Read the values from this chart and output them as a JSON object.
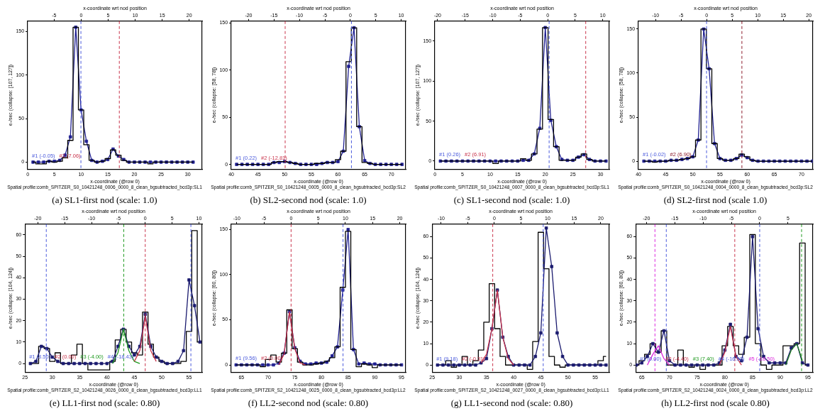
{
  "chart_data": [
    {
      "type": "line",
      "title": "(a) SL1-first nod (scale: 1.0)",
      "subtitle": "Spatial profile:comb_SPITZER_S0_10421248_0006_0000_8_clean_bgsubtracted_bcd3p:SL1",
      "xlabel": "x-coordinate (@row 0)",
      "x2label": "x-coordinate wrt nod position",
      "ylabel": "e-/sec (collapse: [107, 127])",
      "x": [
        1,
        2,
        3,
        4,
        5,
        6,
        7,
        8,
        9,
        10,
        11,
        12,
        13,
        14,
        15,
        16,
        17,
        18,
        19,
        20,
        21,
        22,
        23,
        24,
        25,
        26,
        27,
        28,
        29,
        30,
        31
      ],
      "series": [
        {
          "type": "line",
          "color": "#202090",
          "marker": "square",
          "values": [
            0,
            0,
            0,
            1,
            1,
            2,
            8,
            29,
            155,
            60,
            24,
            2,
            0,
            1,
            3,
            15,
            7,
            3,
            0,
            0,
            0,
            0,
            0,
            0,
            0,
            0,
            0,
            0,
            0,
            0,
            0
          ]
        },
        {
          "type": "step",
          "color": "#000000",
          "values": [
            0,
            -2,
            -2,
            1,
            0,
            1,
            5,
            25,
            155,
            60,
            20,
            2,
            0,
            1,
            4,
            14,
            8,
            2,
            0,
            0,
            0,
            0,
            -2,
            0,
            0,
            0,
            0,
            0,
            0,
            0,
            0
          ]
        }
      ],
      "xlim": [
        0,
        32.7
      ],
      "xticks": [
        0,
        5,
        10,
        15,
        20,
        25,
        30
      ],
      "ylim": [
        -8,
        162
      ],
      "yticks": [
        0,
        50,
        100,
        150
      ],
      "x2lim": [
        -9.9,
        22.4
      ],
      "x2ticks": [
        -5,
        0,
        5,
        10,
        15,
        20
      ],
      "ref_lines": [
        {
          "axis": "x2",
          "value": -0.05,
          "label": "#1 (-0.05)",
          "color": "#4a5adc",
          "line_style": "dashed"
        },
        {
          "axis": "x2",
          "value": 7.06,
          "label": "#2 (7.06)",
          "color": "#c8324a",
          "line_style": "dashed"
        }
      ],
      "grid": false,
      "legend": false
    },
    {
      "type": "line",
      "title": "(b) SL2-second nod (scale: 1.0)",
      "subtitle": "Spatial profile:comb_SPITZER_S0_10421248_0005_0000_8_clean_bgsubtracted_bcd3p:SL2",
      "xlabel": "x-coordinate (@row 0)",
      "x2label": "x-coordinate wrt nod position",
      "ylabel": "e-/sec (collapse: [58, 78])",
      "x": [
        41,
        42,
        43,
        44,
        45,
        46,
        47,
        48,
        49,
        50,
        51,
        52,
        53,
        54,
        55,
        56,
        57,
        58,
        59,
        60,
        61,
        62,
        63,
        64,
        65,
        66,
        67,
        68,
        69,
        70,
        71,
        72
      ],
      "series": [
        {
          "type": "line",
          "color": "#202090",
          "marker": "square",
          "values": [
            0,
            0,
            0,
            0,
            0,
            0,
            0,
            2,
            2,
            3,
            2,
            1,
            0,
            0,
            0,
            0,
            1,
            2,
            2,
            3,
            14,
            104,
            145,
            40,
            4,
            1,
            0,
            0,
            0,
            0,
            0,
            0
          ]
        },
        {
          "type": "step",
          "color": "#000000",
          "values": [
            0,
            0,
            0,
            0,
            0,
            0,
            0,
            2,
            3,
            3,
            2,
            1,
            0,
            0,
            0,
            1,
            1,
            2,
            2,
            5,
            14,
            109,
            145,
            40,
            2,
            1,
            0,
            0,
            0,
            0,
            0,
            0
          ]
        }
      ],
      "xlim": [
        40,
        72.7
      ],
      "xticks": [
        40,
        45,
        50,
        55,
        60,
        65,
        70
      ],
      "ylim": [
        -5,
        152
      ],
      "yticks": [
        0,
        50,
        100,
        150
      ],
      "x2lim": [
        -23.4,
        10.9
      ],
      "x2ticks": [
        -20,
        -15,
        -10,
        -5,
        0,
        5,
        10
      ],
      "ref_lines": [
        {
          "axis": "x2",
          "value": 0.22,
          "label": "#1 (0.22)",
          "color": "#4a5adc",
          "line_style": "dashed"
        },
        {
          "axis": "x2",
          "value": -12.81,
          "label": "#2 (-12.81)",
          "color": "#c8324a",
          "line_style": "dashed"
        }
      ],
      "grid": false,
      "legend": false
    },
    {
      "type": "line",
      "title": "(c) SL1-second nod (scale: 1.0)",
      "subtitle": "Spatial profile:comb_SPITZER_S0_10421248_0007_0000_8_clean_bgsubtracted_bcd3p:SL1",
      "xlabel": "x-coordinate (@row 0)",
      "x2label": "x-coordinate wrt nod position",
      "ylabel": "e-/sec (collapse: [107, 127])",
      "x": [
        1,
        2,
        3,
        4,
        5,
        6,
        7,
        8,
        9,
        10,
        11,
        12,
        13,
        14,
        15,
        16,
        17,
        18,
        19,
        20,
        21,
        22,
        23,
        24,
        25,
        26,
        27,
        28,
        29,
        30,
        31
      ],
      "series": [
        {
          "type": "line",
          "color": "#202090",
          "marker": "square",
          "values": [
            0,
            0,
            0,
            0,
            0,
            0,
            0,
            0,
            0,
            0,
            0,
            0,
            0,
            0,
            0,
            1,
            1,
            9,
            41,
            167,
            51,
            18,
            2,
            1,
            1,
            5,
            8,
            2,
            0,
            0,
            0
          ]
        },
        {
          "type": "step",
          "color": "#000000",
          "values": [
            0,
            0,
            0,
            0,
            0,
            0,
            0,
            0,
            0,
            0,
            -3,
            0,
            0,
            0,
            0,
            3,
            1,
            9,
            40,
            167,
            52,
            18,
            1,
            1,
            1,
            5,
            9,
            2,
            0,
            0,
            0
          ]
        }
      ],
      "xlim": [
        0,
        31.6
      ],
      "xticks": [
        0,
        5,
        10,
        15,
        20,
        25,
        30
      ],
      "ylim": [
        -10,
        175
      ],
      "yticks": [
        0,
        50,
        100,
        150
      ],
      "x2lim": [
        -20.5,
        11.2
      ],
      "x2ticks": [
        -20,
        -15,
        -10,
        -5,
        0,
        5,
        10
      ],
      "ref_lines": [
        {
          "axis": "x2",
          "value": 0.26,
          "label": "#1 (0.26)",
          "color": "#4a5adc",
          "line_style": "dashed"
        },
        {
          "axis": "x2",
          "value": 6.91,
          "label": "#2 (6.91)",
          "color": "#c8324a",
          "line_style": "dashed"
        }
      ],
      "grid": false,
      "legend": false
    },
    {
      "type": "line",
      "title": "(d) SL2-first nod (scale 1.0)",
      "subtitle": "Spatial profile:comb_SPITZER_S0_10421248_0004_0000_8_clean_bgsubtracted_bcd3p:SL2",
      "xlabel": "x-coordinate (@row 0)",
      "x2label": "x-coordinate wrt nod position",
      "ylabel": "e-/sec (collapse: [58, 78])",
      "x": [
        41,
        42,
        43,
        44,
        45,
        46,
        47,
        48,
        49,
        50,
        51,
        52,
        53,
        54,
        55,
        56,
        57,
        58,
        59,
        60,
        61,
        62,
        63,
        64,
        65,
        66,
        67,
        68,
        69,
        70,
        71,
        72
      ],
      "series": [
        {
          "type": "line",
          "color": "#202090",
          "marker": "square",
          "values": [
            0,
            0,
            0,
            0,
            0,
            1,
            1,
            2,
            3,
            5,
            24,
            150,
            105,
            20,
            3,
            1,
            1,
            3,
            7,
            4,
            1,
            0,
            0,
            0,
            0,
            0,
            0,
            0,
            0,
            0,
            0,
            0
          ]
        },
        {
          "type": "step",
          "color": "#000000",
          "values": [
            0,
            0,
            -1,
            0,
            0,
            1,
            1,
            2,
            3,
            5,
            24,
            150,
            105,
            20,
            3,
            1,
            1,
            3,
            8,
            5,
            1,
            0,
            0,
            0,
            0,
            0,
            0,
            0,
            0,
            0,
            0,
            0
          ]
        }
      ],
      "xlim": [
        40,
        72.1
      ],
      "xticks": [
        40,
        45,
        50,
        55,
        60,
        65,
        70
      ],
      "ylim": [
        -9,
        159
      ],
      "yticks": [
        0,
        50,
        100,
        150
      ],
      "x2lim": [
        -13.35,
        20.8
      ],
      "x2ticks": [
        -10,
        -5,
        0,
        5,
        10,
        15,
        20
      ],
      "ref_lines": [
        {
          "axis": "x2",
          "value": -0.02,
          "label": "#1 (-0.02)",
          "color": "#4a5adc",
          "line_style": "dashed"
        },
        {
          "axis": "x2",
          "value": 6.9,
          "label": "#2 (6.90)",
          "color": "#8c1a2a",
          "line_style": "dashed"
        }
      ],
      "grid": false,
      "legend": false
    },
    {
      "type": "line",
      "title": "(e) LL1-first nod (scale: 0.80)",
      "subtitle": "Spatial profile:comb_SPITZER_S2_10421248_0026_0000_8_clean_bgsubtracted_bcd3p:LL1",
      "xlabel": "x-coordinate (@row 0)",
      "x2label": "x-coordinate wrt nod position",
      "ylabel": "e-/sec (collapse: [104, 124])",
      "x": [
        26,
        27,
        28,
        29,
        30,
        31,
        32,
        33,
        34,
        35,
        36,
        37,
        38,
        39,
        40,
        41,
        42,
        43,
        44,
        45,
        46,
        47,
        48,
        49,
        50,
        51,
        52,
        53,
        54,
        55,
        56,
        57
      ],
      "series": [
        {
          "type": "step",
          "color": "#000000",
          "values": [
            0,
            0,
            8,
            7,
            1,
            5,
            0,
            0,
            4,
            9,
            0,
            -3,
            -3,
            -3,
            -3,
            1,
            11,
            16,
            10,
            5,
            4,
            24,
            9,
            3,
            1,
            0,
            0,
            0,
            1,
            15,
            62,
            10
          ]
        },
        {
          "type": "line",
          "color": "#1a1a6e",
          "marker": "square",
          "values": [
            0,
            1,
            8,
            7,
            3,
            1,
            0,
            0,
            0,
            0,
            0,
            0,
            0,
            0,
            0,
            1,
            8,
            16,
            8,
            4,
            8,
            23,
            8,
            3,
            1,
            0,
            0,
            1,
            6,
            39,
            27,
            10
          ]
        },
        {
          "type": "line",
          "color": "#1f9a1f",
          "x": [
            41,
            42,
            43,
            44,
            45,
            46
          ],
          "values": [
            0,
            5,
            16,
            6,
            1,
            0
          ]
        },
        {
          "type": "line",
          "color": "#c8324a",
          "x": [
            45,
            46,
            47,
            48,
            49
          ],
          "values": [
            1,
            6,
            22,
            6,
            1
          ]
        }
      ],
      "xlim": [
        25,
        57.4
      ],
      "xticks": [
        25,
        30,
        35,
        40,
        45,
        50,
        55
      ],
      "ylim": [
        -4,
        65
      ],
      "yticks": [
        0,
        10,
        20,
        30,
        40,
        50,
        60
      ],
      "x2lim": [
        -22.4,
        10.6
      ],
      "x2ticks": [
        -20,
        -15,
        -10,
        -5,
        0,
        5,
        10
      ],
      "ref_lines": [
        {
          "axis": "x2",
          "value": 8.5,
          "label": "#1 (8.50)",
          "color": "#4a5adc",
          "line_style": "dashed"
        },
        {
          "axis": "x2",
          "value": 0,
          "label": "#2 (0.00)",
          "color": "#c8324a",
          "line_style": "dashed"
        },
        {
          "axis": "x2",
          "value": -4,
          "label": "#3 (-4.00)",
          "color": "#1f9a1f",
          "line_style": "dashed"
        },
        {
          "axis": "x2",
          "value": -18.43,
          "label": "#4 (-18.43)",
          "color": "#4a5adc",
          "line_style": "dashed"
        }
      ],
      "grid": false,
      "legend": false
    },
    {
      "type": "line",
      "title": "(f) LL2-second nod (scale: 0.80)",
      "subtitle": "Spatial profile:comb_SPITZER_S2_10421248_0025_0000_8_clean_bgsubtracted_bcd3p:LL2",
      "xlabel": "x-coordinate (@row 0)",
      "x2label": "x-coordinate wrt nod position",
      "ylabel": "e-/sec (collapse: [60, 80])",
      "x": [
        64,
        65,
        66,
        67,
        68,
        69,
        70,
        71,
        72,
        73,
        74,
        75,
        76,
        77,
        78,
        79,
        80,
        81,
        82,
        83,
        84,
        85,
        86,
        87,
        88,
        89,
        90,
        91,
        92,
        93,
        94,
        95
      ],
      "series": [
        {
          "type": "line",
          "color": "#202090",
          "marker": "square",
          "values": [
            0,
            0,
            0,
            0,
            0,
            0,
            0,
            0,
            2,
            13,
            59,
            19,
            4,
            1,
            1,
            2,
            2,
            3,
            10,
            20,
            83,
            150,
            17,
            1,
            2,
            1,
            1,
            0,
            0,
            0,
            0,
            0
          ]
        },
        {
          "type": "step",
          "color": "#000000",
          "values": [
            0,
            0,
            0,
            0,
            0,
            -2,
            6,
            11,
            3,
            13,
            61,
            18,
            3,
            0,
            0,
            1,
            2,
            4,
            8,
            20,
            86,
            148,
            17,
            -2,
            1,
            0,
            -3,
            0,
            0,
            0,
            0,
            0
          ]
        },
        {
          "type": "line",
          "color": "#c8324a",
          "x": [
            72,
            73,
            74,
            75,
            76,
            77
          ],
          "values": [
            0,
            12,
            59,
            18,
            2,
            0
          ]
        }
      ],
      "xlim": [
        63.1,
        95.8
      ],
      "xticks": [
        65,
        70,
        75,
        80,
        85,
        90,
        95
      ],
      "ylim": [
        -8,
        156
      ],
      "yticks": [
        0,
        50,
        100,
        150
      ],
      "x2lim": [
        -11,
        21.1
      ],
      "x2ticks": [
        -10,
        -5,
        0,
        5,
        10,
        15,
        20
      ],
      "ref_lines": [
        {
          "axis": "x2",
          "value": 9.56,
          "label": "#1 (9.56)",
          "color": "#4a5adc",
          "line_style": "dashed"
        },
        {
          "axis": "x2",
          "value": 0,
          "label": "#2 (0.00)",
          "color": "#c8324a",
          "line_style": "dashed"
        }
      ],
      "grid": false,
      "legend": false
    },
    {
      "type": "line",
      "title": "(g) LL1-second nod (scale: 0.80)",
      "subtitle": "Spatial profile:comb_SPITZER_S2_10421248_0027_0000_8_clean_bgsubtracted_bcd3p:LL1",
      "xlabel": "x-coordinate (@row 0)",
      "x2label": "x-coordinate wrt nod position",
      "ylabel": "e-/sec (collapse: [104, 124])",
      "x": [
        26,
        27,
        28,
        29,
        30,
        31,
        32,
        33,
        34,
        35,
        36,
        37,
        38,
        39,
        40,
        41,
        42,
        43,
        44,
        45,
        46,
        47,
        48,
        49,
        50,
        51,
        52,
        53,
        54,
        55,
        56,
        57
      ],
      "series": [
        {
          "type": "step",
          "color": "#000000",
          "values": [
            0,
            0,
            2,
            -1,
            0,
            4,
            0,
            2,
            7,
            20,
            38,
            17,
            4,
            0,
            0,
            0,
            0,
            -2,
            11,
            62,
            45,
            4,
            0,
            -1,
            0,
            0,
            0,
            0,
            0,
            0,
            2,
            4
          ]
        },
        {
          "type": "line",
          "color": "#1a1a6e",
          "marker": "square",
          "values": [
            0,
            0,
            0,
            0,
            0,
            0,
            0,
            0,
            1,
            3,
            17,
            35,
            13,
            4,
            0,
            0,
            0,
            0,
            4,
            15,
            64,
            46,
            15,
            4,
            0,
            0,
            0,
            0,
            0,
            0,
            0,
            0
          ]
        },
        {
          "type": "line",
          "color": "#c8324a",
          "x": [
            34,
            35,
            36,
            37,
            38,
            39,
            40
          ],
          "values": [
            1,
            5,
            17,
            35,
            13,
            3,
            0
          ]
        }
      ],
      "xlim": [
        25,
        57.6
      ],
      "xticks": [
        25,
        30,
        35,
        40,
        45,
        50,
        55
      ],
      "ylim": [
        -3.3,
        65.8
      ],
      "yticks": [
        0,
        10,
        20,
        30,
        40,
        50,
        60
      ],
      "x2lim": [
        -11.7,
        21.6
      ],
      "x2ticks": [
        -10,
        -5,
        0,
        5,
        10,
        15,
        20
      ],
      "ref_lines": [
        {
          "axis": "x2",
          "value": 9.18,
          "label": "#1 (9.18)",
          "color": "#4a5adc",
          "line_style": "dashed"
        },
        {
          "axis": "x2",
          "value": -0.31,
          "label": "#2 (-0.31)",
          "color": "#c8324a",
          "line_style": "dashed"
        }
      ],
      "grid": false,
      "legend": false
    },
    {
      "type": "line",
      "title": "(h) LL2-first nod (scale 0.80)",
      "subtitle": "Spatial profile:comb_SPITZER_S2_10421248_0024_0000_8_clean_bgsubtracted_bcd3p:LL2",
      "xlabel": "x-coordinate (@row 0)",
      "x2label": "x-coordinate wrt nod position",
      "ylabel": "e-/sec (collapse: [60, 80])",
      "x": [
        64,
        65,
        66,
        67,
        68,
        69,
        70,
        71,
        72,
        73,
        74,
        75,
        76,
        77,
        78,
        79,
        80,
        81,
        82,
        83,
        84,
        85,
        86,
        87,
        88,
        89,
        90,
        91,
        92,
        93,
        94,
        95
      ],
      "series": [
        {
          "type": "step",
          "color": "#000000",
          "values": [
            0,
            2,
            5,
            10,
            6,
            16,
            0,
            0,
            7,
            0,
            -1,
            0,
            -2,
            0,
            0,
            0,
            9,
            18,
            9,
            5,
            13,
            61,
            10,
            0,
            -2,
            0,
            0,
            9,
            9,
            10,
            57,
            0
          ]
        },
        {
          "type": "line",
          "color": "#1a1a6e",
          "marker": "square",
          "values": [
            0,
            1,
            4,
            10,
            6,
            16,
            2,
            0,
            0,
            0,
            0,
            0,
            0,
            0,
            0,
            1,
            7,
            19,
            4,
            2,
            13,
            60,
            17,
            4,
            1,
            1,
            1,
            1,
            8,
            10,
            1,
            0
          ]
        },
        {
          "type": "line",
          "color": "#dc28dc",
          "x": [
            66,
            67,
            68,
            69,
            70
          ],
          "values": [
            0,
            5,
            9,
            3,
            0
          ]
        },
        {
          "type": "line",
          "color": "#c8324a",
          "x": [
            79,
            80,
            81,
            82,
            83
          ],
          "values": [
            0,
            6,
            18,
            4,
            0
          ]
        },
        {
          "type": "line",
          "color": "#1f7a1f",
          "x": [
            91,
            92,
            93,
            94
          ],
          "values": [
            0,
            7,
            10,
            2
          ]
        }
      ],
      "xlim": [
        63.9,
        95.9
      ],
      "xticks": [
        65,
        70,
        75,
        80,
        85,
        90,
        95
      ],
      "ylim": [
        -3.3,
        65.8
      ],
      "yticks": [
        0,
        10,
        20,
        30,
        40,
        50,
        60
      ],
      "x2lim": [
        -21.9,
        9.4
      ],
      "x2ticks": [
        -20,
        -15,
        -10,
        -5,
        0,
        5
      ],
      "ref_lines": [
        {
          "axis": "x2",
          "value": 0,
          "label": "#1 (0.00)",
          "color": "#4a5adc",
          "line_style": "dashed"
        },
        {
          "axis": "x2",
          "value": -4.4,
          "label": "#2 (-4.40)",
          "color": "#c8324a",
          "line_style": "dashed"
        },
        {
          "axis": "x2",
          "value": 7.4,
          "label": "#3 (7.40)",
          "color": "#1f9a1f",
          "line_style": "dashed"
        },
        {
          "axis": "x2",
          "value": -16.5,
          "label": "#4 (-16.50)",
          "color": "#4a5adc",
          "line_style": "dashed"
        },
        {
          "axis": "x2",
          "value": -18.5,
          "label": "#5 (-18.50)",
          "color": "#dc28dc",
          "line_style": "dashed"
        }
      ],
      "grid": false,
      "legend": false
    }
  ]
}
